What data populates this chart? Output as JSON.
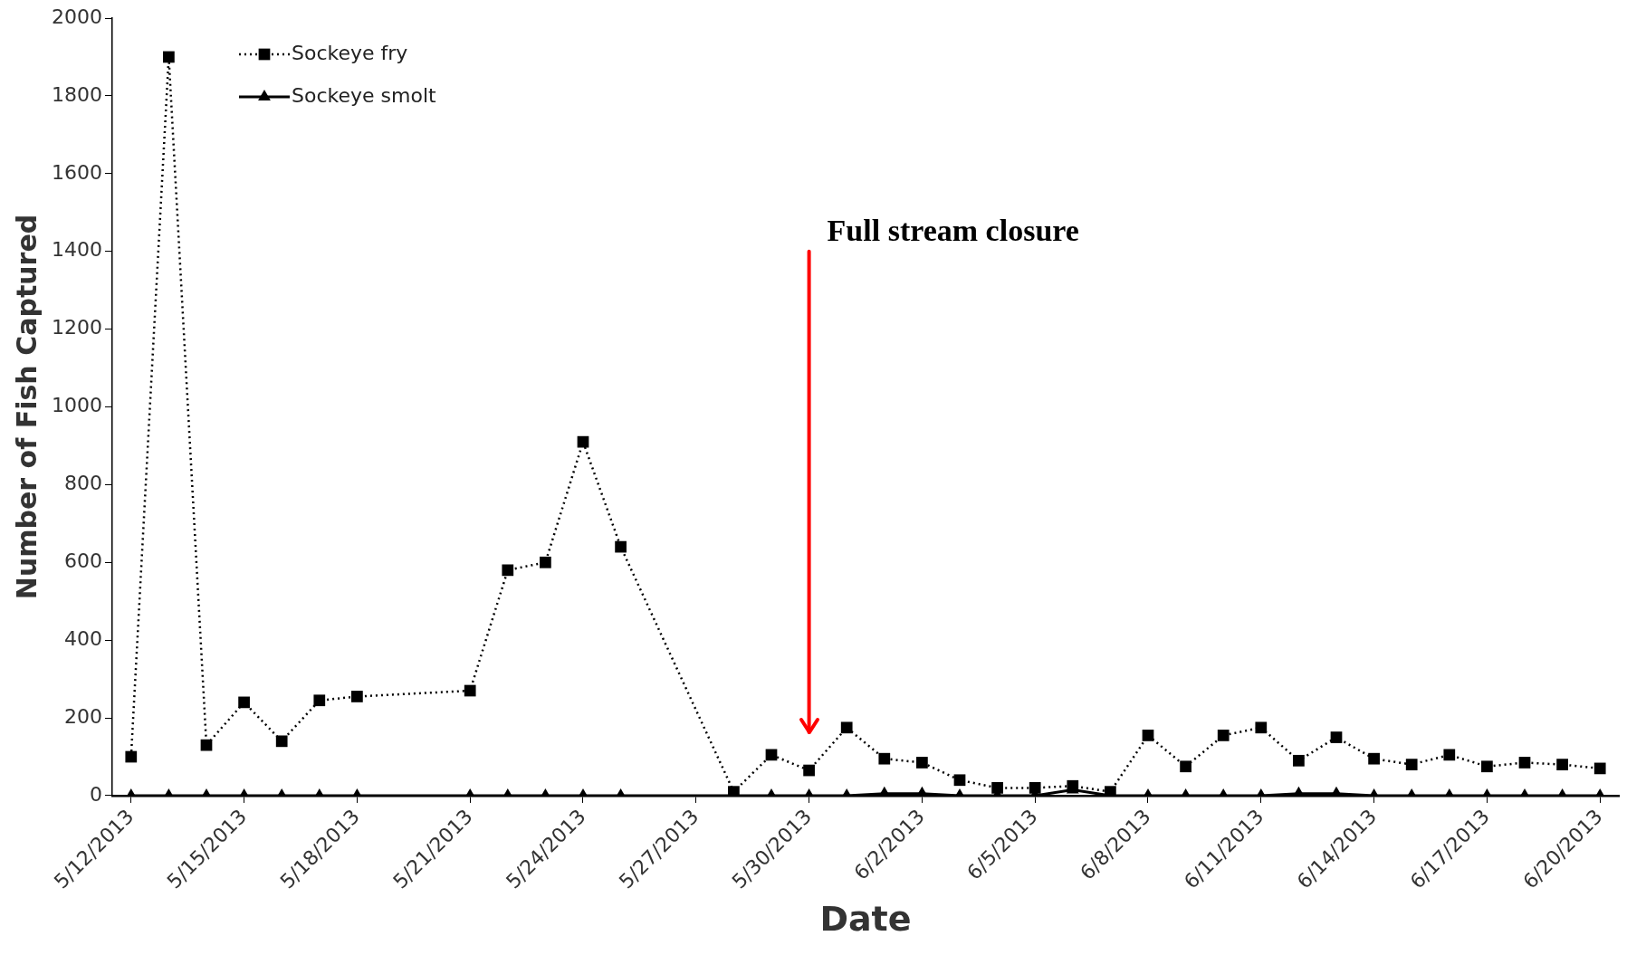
{
  "chart_data": {
    "type": "line",
    "xlabel": "Date",
    "ylabel": "Number of Fish Captured",
    "x": [
      "2013-05-12",
      "2013-05-13",
      "2013-05-14",
      "2013-05-15",
      "2013-05-16",
      "2013-05-17",
      "2013-05-18",
      "2013-05-21",
      "2013-05-22",
      "2013-05-23",
      "2013-05-24",
      "2013-05-25",
      "2013-05-28",
      "2013-05-29",
      "2013-05-30",
      "2013-05-31",
      "2013-06-01",
      "2013-06-02",
      "2013-06-03",
      "2013-06-04",
      "2013-06-05",
      "2013-06-06",
      "2013-06-07",
      "2013-06-08",
      "2013-06-09",
      "2013-06-10",
      "2013-06-11",
      "2013-06-12",
      "2013-06-13",
      "2013-06-14",
      "2013-06-15",
      "2013-06-16",
      "2013-06-17",
      "2013-06-18",
      "2013-06-19",
      "2013-06-20"
    ],
    "series": [
      {
        "name": "Sockeye fry",
        "color": "#000000",
        "marker": "square",
        "line_style": "dotted",
        "values": [
          100,
          1900,
          130,
          240,
          140,
          245,
          255,
          270,
          580,
          600,
          910,
          640,
          10,
          105,
          65,
          175,
          95,
          85,
          40,
          20,
          20,
          25,
          10,
          155,
          75,
          155,
          175,
          90,
          150,
          95,
          80,
          105,
          75,
          85,
          80,
          70
        ]
      },
      {
        "name": "Sockeye smolt",
        "color": "#000000",
        "marker": "triangle",
        "line_style": "solid",
        "values": [
          0,
          0,
          0,
          0,
          0,
          0,
          0,
          0,
          0,
          0,
          0,
          0,
          0,
          0,
          0,
          0,
          5,
          5,
          0,
          0,
          0,
          15,
          0,
          0,
          0,
          0,
          0,
          5,
          5,
          0,
          0,
          0,
          0,
          0,
          0,
          0
        ]
      }
    ],
    "xlim": [
      "2013-05-11T12:00",
      "2013-06-20T12:00"
    ],
    "xticks": [
      {
        "value": "2013-05-12",
        "label": "5/12/2013"
      },
      {
        "value": "2013-05-15",
        "label": "5/15/2013"
      },
      {
        "value": "2013-05-18",
        "label": "5/18/2013"
      },
      {
        "value": "2013-05-21",
        "label": "5/21/2013"
      },
      {
        "value": "2013-05-24",
        "label": "5/24/2013"
      },
      {
        "value": "2013-05-27",
        "label": "5/27/2013"
      },
      {
        "value": "2013-05-30",
        "label": "5/30/2013"
      },
      {
        "value": "2013-06-02",
        "label": "6/2/2013"
      },
      {
        "value": "2013-06-05",
        "label": "6/5/2013"
      },
      {
        "value": "2013-06-08",
        "label": "6/8/2013"
      },
      {
        "value": "2013-06-11",
        "label": "6/11/2013"
      },
      {
        "value": "2013-06-14",
        "label": "6/14/2013"
      },
      {
        "value": "2013-06-17",
        "label": "6/17/2013"
      },
      {
        "value": "2013-06-20",
        "label": "6/20/2013"
      }
    ],
    "ylim": [
      0,
      2000
    ],
    "yticks": [
      0,
      200,
      400,
      600,
      800,
      1000,
      1200,
      1400,
      1600,
      1800,
      2000
    ],
    "grid": false,
    "legend": "top left",
    "ref_lines": [
      {
        "axis": "x",
        "value": "2013-05-30",
        "label": "Full stream closure",
        "color": "#ff0000"
      }
    ]
  }
}
